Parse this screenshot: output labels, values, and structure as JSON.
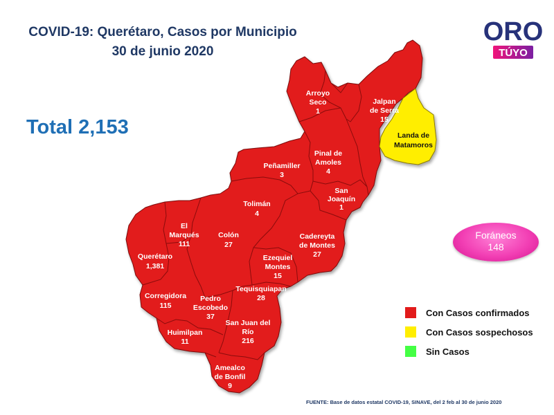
{
  "title": {
    "line1": "COVID-19: Querétaro, Casos por Municipio",
    "line2": "30 de junio 2020"
  },
  "total": "Total 2,153",
  "logo": {
    "top": "ORO",
    "bottom": "TÚYO"
  },
  "foraneos": {
    "label": "Foráneos",
    "value": "148"
  },
  "colors": {
    "confirmed": "#e21b1b",
    "suspected": "#ffee00",
    "none": "#44ff44",
    "title": "#1f3864",
    "total": "#1f6fb5",
    "foraneos": "#f23fb4"
  },
  "legend": [
    {
      "label": "Con Casos confirmados",
      "color": "#e21b1b"
    },
    {
      "label": "Con Casos sospechosos",
      "color": "#ffee00"
    },
    {
      "label": "Sin Casos",
      "color": "#44ff44"
    }
  ],
  "source": "FUENTE: Base de datos estatal COVID-19, SINAVE, del 2 feb al 30 de junio 2020",
  "municipalities": [
    {
      "id": "arroyo-seco",
      "lines": [
        "Arroyo",
        "Seco"
      ],
      "cases": "1",
      "status": "confirmed"
    },
    {
      "id": "jalpan-de-serra",
      "lines": [
        "Jalpan",
        "de Serra"
      ],
      "cases": "15",
      "status": "confirmed"
    },
    {
      "id": "landa-de-matamoros",
      "lines": [
        "Landa de",
        "Matamoros"
      ],
      "cases": "",
      "status": "suspected"
    },
    {
      "id": "pinal-de-amoles",
      "lines": [
        "Pinal de",
        "Amoles"
      ],
      "cases": "4",
      "status": "confirmed"
    },
    {
      "id": "penamiller",
      "lines": [
        "Peñamiller"
      ],
      "cases": "3",
      "status": "confirmed"
    },
    {
      "id": "san-joaquin",
      "lines": [
        "San",
        "Joaquín"
      ],
      "cases": "1",
      "status": "confirmed"
    },
    {
      "id": "toliman",
      "lines": [
        "Tolimán"
      ],
      "cases": "4",
      "status": "confirmed"
    },
    {
      "id": "el-marques",
      "lines": [
        "El",
        "Marqués"
      ],
      "cases": "111",
      "status": "confirmed"
    },
    {
      "id": "colon",
      "lines": [
        "Colón"
      ],
      "cases": "27",
      "status": "confirmed"
    },
    {
      "id": "cadereyta-de-montes",
      "lines": [
        "Cadereyta",
        "de Montes"
      ],
      "cases": "27",
      "status": "confirmed"
    },
    {
      "id": "queretaro",
      "lines": [
        "Querétaro"
      ],
      "cases": "1,381",
      "status": "confirmed"
    },
    {
      "id": "ezequiel-montes",
      "lines": [
        "Ezequiel",
        "Montes"
      ],
      "cases": "15",
      "status": "confirmed"
    },
    {
      "id": "tequisquiapan",
      "lines": [
        "Tequisquiapan"
      ],
      "cases": "28",
      "status": "confirmed"
    },
    {
      "id": "corregidora",
      "lines": [
        "Corregidora"
      ],
      "cases": "115",
      "status": "confirmed"
    },
    {
      "id": "pedro-escobedo",
      "lines": [
        "Pedro",
        "Escobedo"
      ],
      "cases": "37",
      "status": "confirmed"
    },
    {
      "id": "san-juan-del-rio",
      "lines": [
        "San Juan del",
        "Río"
      ],
      "cases": "216",
      "status": "confirmed"
    },
    {
      "id": "huimilpan",
      "lines": [
        "Huimilpan"
      ],
      "cases": "11",
      "status": "confirmed"
    },
    {
      "id": "amealco-de-bonfil",
      "lines": [
        "Amealco",
        "de Bonfil"
      ],
      "cases": "9",
      "status": "confirmed"
    }
  ]
}
